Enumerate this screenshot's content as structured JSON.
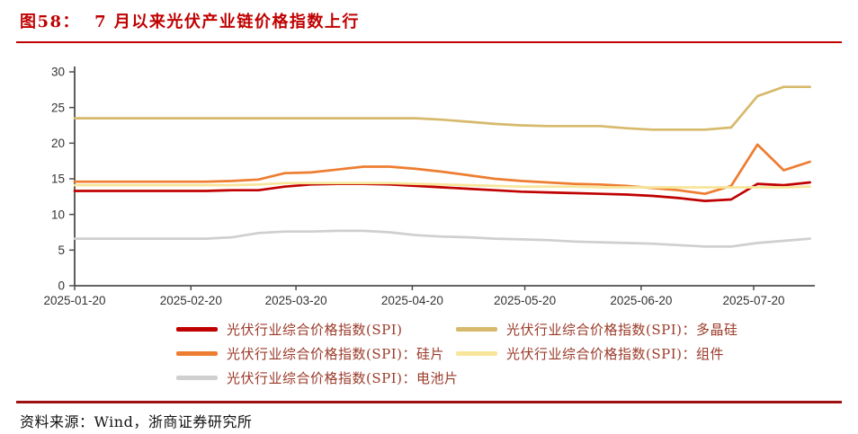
{
  "header": {
    "figure_label": "图58：",
    "title": "7 月以来光伏产业链价格指数上行"
  },
  "footer": {
    "source": "资料来源：Wind，浙商证券研究所"
  },
  "colors": {
    "title_red": "#C00000",
    "rule_top": "#C00000",
    "rule_bottom": "#A01010",
    "axis": "#4D4D4D",
    "tick_label": "#333333",
    "legend_text": "#9A3A28",
    "spi": "#C00000",
    "polysilicon": "#D6B96B",
    "wafer": "#ED7D31",
    "module": "#F7E59A",
    "cell": "#CFCFCF"
  },
  "chart_data": {
    "type": "line",
    "title": "图58：7月以来光伏产业链价格指数上行",
    "xlabel": "",
    "ylabel": "",
    "ylim": [
      0,
      30
    ],
    "yticks": [
      0,
      5,
      10,
      15,
      20,
      25,
      30
    ],
    "grid": false,
    "legend_position": "bottom",
    "xtick_labels": [
      "2025-01-20",
      "2025-02-20",
      "2025-03-20",
      "2025-04-20",
      "2025-05-20",
      "2025-06-20",
      "2025-07-20"
    ],
    "x": [
      "2025-01-20",
      "2025-01-27",
      "2025-02-03",
      "2025-02-10",
      "2025-02-17",
      "2025-02-24",
      "2025-03-03",
      "2025-03-10",
      "2025-03-17",
      "2025-03-24",
      "2025-03-31",
      "2025-04-07",
      "2025-04-14",
      "2025-04-21",
      "2025-04-28",
      "2025-05-05",
      "2025-05-12",
      "2025-05-19",
      "2025-05-26",
      "2025-06-02",
      "2025-06-09",
      "2025-06-16",
      "2025-06-23",
      "2025-06-30",
      "2025-07-07",
      "2025-07-14",
      "2025-07-21",
      "2025-07-28",
      "2025-08-04"
    ],
    "series": [
      {
        "key": "spi",
        "name": "光伏行业综合价格指数(SPI)",
        "color": "#C00000",
        "values": [
          13.3,
          13.3,
          13.3,
          13.3,
          13.3,
          13.3,
          13.4,
          13.4,
          13.9,
          14.2,
          14.3,
          14.3,
          14.2,
          14.0,
          13.8,
          13.6,
          13.4,
          13.2,
          13.1,
          13.0,
          12.9,
          12.8,
          12.6,
          12.3,
          11.9,
          12.1,
          14.3,
          14.1,
          14.5
        ]
      },
      {
        "key": "polysilicon",
        "name": "光伏行业综合价格指数(SPI)：多晶硅",
        "color": "#D6B96B",
        "values": [
          23.5,
          23.5,
          23.5,
          23.5,
          23.5,
          23.5,
          23.5,
          23.5,
          23.5,
          23.5,
          23.5,
          23.5,
          23.5,
          23.5,
          23.3,
          23.0,
          22.7,
          22.5,
          22.4,
          22.4,
          22.4,
          22.1,
          21.9,
          21.9,
          21.9,
          22.2,
          26.6,
          27.9,
          27.9
        ]
      },
      {
        "key": "wafer",
        "name": "光伏行业综合价格指数(SPI)：硅片",
        "color": "#ED7D31",
        "values": [
          14.6,
          14.6,
          14.6,
          14.6,
          14.6,
          14.6,
          14.7,
          14.9,
          15.8,
          15.9,
          16.3,
          16.7,
          16.7,
          16.4,
          16.0,
          15.5,
          15.0,
          14.7,
          14.5,
          14.3,
          14.2,
          14.0,
          13.7,
          13.4,
          12.9,
          14.0,
          19.8,
          16.2,
          17.4
        ]
      },
      {
        "key": "module",
        "name": "光伏行业综合价格指数(SPI)：组件",
        "color": "#F7E59A",
        "values": [
          14.1,
          14.1,
          14.1,
          14.1,
          14.1,
          14.1,
          14.1,
          14.2,
          14.4,
          14.4,
          14.4,
          14.4,
          14.4,
          14.3,
          14.2,
          14.1,
          14.0,
          13.9,
          13.9,
          13.9,
          13.8,
          13.8,
          13.8,
          13.8,
          13.8,
          13.8,
          13.8,
          13.8,
          13.9
        ]
      },
      {
        "key": "cell",
        "name": "光伏行业综合价格指数(SPI)：电池片",
        "color": "#CFCFCF",
        "values": [
          6.6,
          6.6,
          6.6,
          6.6,
          6.6,
          6.6,
          6.8,
          7.4,
          7.6,
          7.6,
          7.7,
          7.7,
          7.5,
          7.1,
          6.9,
          6.8,
          6.6,
          6.5,
          6.4,
          6.2,
          6.1,
          6.0,
          5.9,
          5.7,
          5.5,
          5.5,
          6.0,
          6.3,
          6.6
        ]
      }
    ]
  },
  "legend": {
    "items": [
      {
        "label": "光伏行业综合价格指数(SPI)",
        "color": "#C00000"
      },
      {
        "label": "光伏行业综合价格指数(SPI)：硅片",
        "color": "#ED7D31"
      },
      {
        "label": "光伏行业综合价格指数(SPI)：电池片",
        "color": "#CFCFCF"
      },
      {
        "label": "光伏行业综合价格指数(SPI)：多晶硅",
        "color": "#D6B96B"
      },
      {
        "label": "光伏行业综合价格指数(SPI)：组件",
        "color": "#F7E59A"
      }
    ]
  }
}
